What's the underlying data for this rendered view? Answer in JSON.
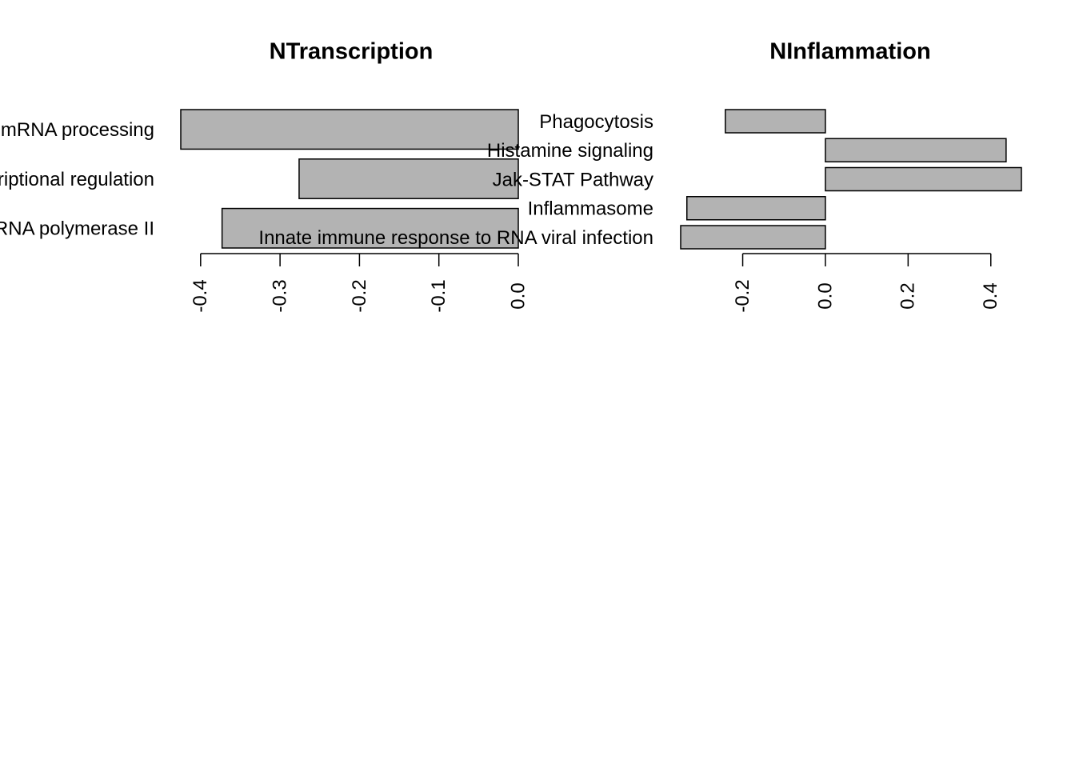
{
  "chart_data": [
    {
      "type": "bar",
      "orientation": "horizontal",
      "title": "NTranscription",
      "categories": [
        "mRNA processing",
        "Transcriptional regulation",
        "Transcription by RNA polymerase II"
      ],
      "values": [
        -0.425,
        -0.276,
        -0.373
      ],
      "color": "#b3b3b3",
      "xlim": [
        -0.425,
        0
      ],
      "xticks": [
        -0.4,
        -0.3,
        -0.2,
        -0.1,
        {
          "value": 0,
          "label": "0.0"
        }
      ]
    },
    {
      "type": "bar",
      "orientation": "horizontal",
      "title": "NInflammation",
      "categories": [
        "Phagocytosis",
        "Histamine signaling",
        "Jak-STAT Pathway",
        "Inflammasome",
        "Innate immune response to RNA viral infection"
      ],
      "values": [
        -0.242,
        0.437,
        0.474,
        -0.335,
        -0.35
      ],
      "color": "#b3b3b3",
      "xlim": [
        -0.35,
        0.474
      ],
      "xticks": [
        -0.2,
        {
          "value": 0,
          "label": "0.0"
        },
        0.2,
        0.4
      ]
    }
  ]
}
